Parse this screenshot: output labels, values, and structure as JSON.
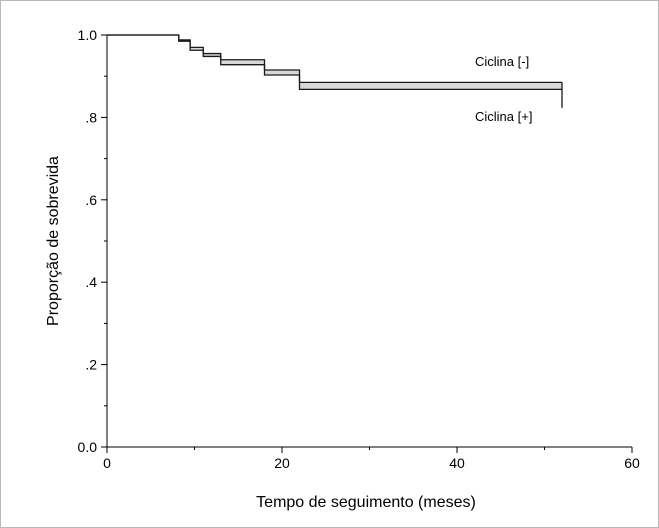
{
  "chart_data": {
    "type": "line",
    "step": true,
    "xlabel": "Tempo de seguimento (meses)",
    "ylabel": "Proporção de sobrevida",
    "xlim": [
      0,
      60
    ],
    "ylim": [
      0,
      1
    ],
    "xticks": [
      {
        "value": 0,
        "label": "0"
      },
      {
        "value": 20,
        "label": "20"
      },
      {
        "value": 40,
        "label": "40"
      },
      {
        "value": 60,
        "label": "60"
      }
    ],
    "yticks": [
      {
        "value": 0.0,
        "label": "0.0"
      },
      {
        "value": 0.2,
        "label": ".2"
      },
      {
        "value": 0.4,
        "label": ".4"
      },
      {
        "value": 0.6,
        "label": ".6"
      },
      {
        "value": 0.8,
        "label": ".8"
      },
      {
        "value": 1.0,
        "label": "1.0"
      }
    ],
    "grid": false,
    "series": [
      {
        "name": "Ciclina [-]",
        "x": [
          0,
          8.2,
          9.5,
          11,
          13,
          18,
          22,
          52
        ],
        "y": [
          1.0,
          0.988,
          0.97,
          0.955,
          0.94,
          0.915,
          0.885,
          0.885
        ]
      },
      {
        "name": "Ciclina [+]",
        "x": [
          0,
          8.2,
          9.5,
          11,
          13,
          18,
          22,
          52
        ],
        "y": [
          1.0,
          0.985,
          0.963,
          0.948,
          0.928,
          0.903,
          0.868,
          0.868
        ],
        "final_drop_to": 0.823
      }
    ],
    "line_color": "#1a1a1a",
    "band_color": "#d8d8d8"
  }
}
